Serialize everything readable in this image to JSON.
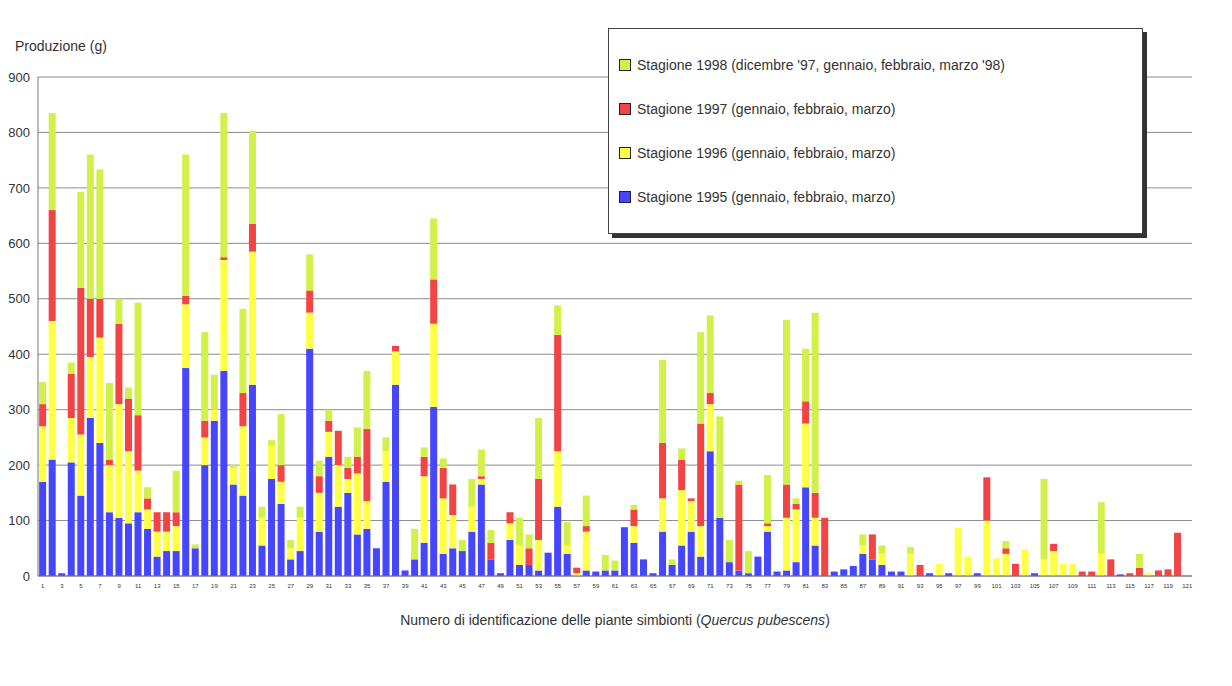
{
  "chart_data": {
    "type": "bar",
    "stacked": true,
    "grid": true,
    "legend": "top-right",
    "y_label": "Produzione (g)",
    "x_label": "Numero di identificazione delle piante simbionti (Quercus pubescens)",
    "ylim": [
      0,
      900
    ],
    "yticks": [
      0,
      100,
      200,
      300,
      400,
      500,
      600,
      700,
      800,
      900
    ],
    "categories": [
      "1",
      null,
      "3",
      null,
      "5",
      null,
      "7",
      null,
      "9",
      null,
      "11",
      null,
      "13",
      null,
      "15",
      null,
      "17",
      null,
      "19",
      null,
      "21",
      null,
      "23",
      null,
      "25",
      null,
      "27",
      null,
      "29",
      null,
      "31",
      null,
      "33",
      null,
      "35",
      null,
      "37",
      null,
      "39",
      null,
      "41",
      null,
      "43",
      null,
      "45",
      null,
      "47",
      null,
      "49",
      null,
      "51",
      null,
      "53",
      null,
      "55",
      null,
      "57",
      null,
      "59",
      null,
      "61",
      null,
      "63",
      null,
      "65",
      null,
      "67",
      null,
      "69",
      null,
      "71",
      null,
      "73",
      null,
      "75",
      null,
      "77",
      null,
      "79",
      null,
      "81",
      null,
      "83",
      null,
      "85",
      null,
      "87",
      null,
      "89",
      null,
      "91",
      null,
      "93",
      null,
      "95",
      null,
      "97",
      null,
      "99",
      null,
      "101",
      null,
      "103",
      null,
      "105",
      null,
      "107",
      null,
      "109",
      null,
      "111",
      null,
      "113",
      null,
      "115",
      null,
      "117",
      null,
      "119",
      null,
      "121"
    ],
    "series": [
      {
        "name": "Stagione 1995 (gennaio, febbraio, marzo)",
        "color": "#4646ff",
        "values": [
          170,
          210,
          5,
          205,
          145,
          285,
          240,
          115,
          105,
          95,
          115,
          85,
          35,
          45,
          45,
          375,
          50,
          200,
          280,
          370,
          165,
          145,
          345,
          55,
          175,
          130,
          30,
          45,
          410,
          80,
          215,
          125,
          150,
          75,
          85,
          50,
          170,
          345,
          10,
          30,
          60,
          305,
          40,
          50,
          45,
          80,
          165,
          30,
          5,
          65,
          20,
          20,
          10,
          42,
          125,
          40,
          0,
          10,
          8,
          10,
          10,
          88,
          60,
          30,
          5,
          80,
          20,
          55,
          80,
          35,
          225,
          105,
          25,
          10,
          5,
          35,
          80,
          8,
          10,
          25,
          160,
          55,
          0,
          8,
          12,
          18,
          40,
          30,
          20,
          8,
          8,
          0,
          0,
          5,
          0,
          5,
          0,
          0,
          5,
          0,
          0,
          0,
          0,
          0,
          5,
          0,
          0,
          0,
          0,
          0,
          0,
          0,
          0,
          3,
          0,
          0,
          0,
          0,
          0,
          0,
          0
        ]
      },
      {
        "name": "Stagione 1996 (gennaio, febbraio, marzo)",
        "color": "#ffff44",
        "values": [
          100,
          250,
          0,
          80,
          110,
          110,
          190,
          85,
          205,
          130,
          75,
          35,
          45,
          35,
          45,
          115,
          0,
          50,
          20,
          200,
          30,
          125,
          240,
          50,
          60,
          40,
          20,
          60,
          65,
          70,
          45,
          75,
          25,
          110,
          50,
          0,
          55,
          60,
          0,
          0,
          120,
          150,
          100,
          60,
          0,
          45,
          10,
          0,
          0,
          30,
          35,
          0,
          55,
          0,
          100,
          15,
          5,
          70,
          0,
          0,
          0,
          0,
          30,
          0,
          0,
          60,
          0,
          100,
          55,
          55,
          85,
          0,
          0,
          0,
          0,
          0,
          10,
          0,
          95,
          95,
          115,
          50,
          0,
          0,
          0,
          0,
          15,
          0,
          20,
          0,
          0,
          40,
          0,
          0,
          22,
          0,
          87,
          35,
          0,
          100,
          32,
          40,
          0,
          48,
          0,
          30,
          45,
          22,
          22,
          0,
          0,
          40,
          0,
          0,
          0,
          0,
          5,
          0,
          0,
          0,
          0
        ]
      },
      {
        "name": "Stagione 1997 (gennaio, febbraio, marzo)",
        "color": "#f24444",
        "values": [
          40,
          200,
          0,
          80,
          265,
          105,
          70,
          10,
          145,
          95,
          100,
          20,
          35,
          35,
          25,
          15,
          0,
          30,
          0,
          5,
          0,
          60,
          50,
          0,
          0,
          30,
          0,
          0,
          40,
          30,
          20,
          62,
          20,
          30,
          130,
          0,
          0,
          10,
          0,
          0,
          35,
          80,
          55,
          55,
          0,
          0,
          5,
          30,
          0,
          20,
          0,
          30,
          110,
          0,
          210,
          0,
          10,
          10,
          0,
          0,
          0,
          0,
          30,
          0,
          0,
          100,
          0,
          55,
          5,
          185,
          20,
          0,
          0,
          155,
          0,
          0,
          5,
          0,
          60,
          10,
          40,
          45,
          105,
          0,
          0,
          0,
          0,
          45,
          0,
          0,
          0,
          0,
          20,
          0,
          0,
          0,
          0,
          0,
          0,
          78,
          0,
          10,
          22,
          0,
          0,
          0,
          13,
          0,
          0,
          8,
          8,
          0,
          30,
          0,
          5,
          15,
          0,
          10,
          12,
          78,
          0
        ]
      },
      {
        "name": "Stagione 1998 (dicembre '97, gennaio, febbraio, marzo '98)",
        "color": "#d2f04a",
        "values": [
          40,
          175,
          0,
          20,
          173,
          260,
          233,
          138,
          45,
          20,
          203,
          20,
          0,
          0,
          75,
          255,
          7,
          160,
          63,
          260,
          5,
          152,
          168,
          20,
          10,
          92,
          15,
          20,
          65,
          28,
          20,
          0,
          20,
          53,
          105,
          0,
          25,
          0,
          0,
          55,
          17,
          110,
          17,
          0,
          20,
          50,
          48,
          23,
          0,
          0,
          50,
          25,
          110,
          0,
          53,
          42,
          0,
          55,
          0,
          28,
          18,
          0,
          8,
          0,
          0,
          150,
          10,
          20,
          0,
          165,
          140,
          183,
          40,
          7,
          40,
          0,
          87,
          0,
          297,
          10,
          95,
          325,
          0,
          0,
          0,
          0,
          20,
          0,
          15,
          0,
          0,
          12,
          0,
          0,
          0,
          0,
          0,
          0,
          0,
          0,
          0,
          13,
          0,
          0,
          0,
          145,
          0,
          0,
          0,
          0,
          0,
          93,
          0,
          0,
          0,
          25,
          0,
          0,
          0,
          0,
          0
        ]
      }
    ]
  }
}
